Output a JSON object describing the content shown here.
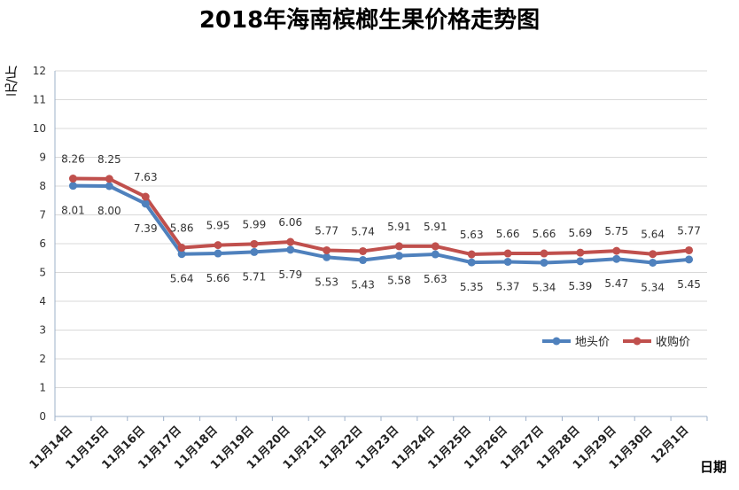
{
  "chart_data": {
    "type": "line",
    "title": "2018年海南槟榔生果价格走势图",
    "xlabel": "日期",
    "ylabel": "元/斤",
    "ylim": [
      0,
      12
    ],
    "yticks": [
      "0",
      "1",
      "2",
      "3",
      "4",
      "5",
      "6",
      "7",
      "8",
      "9",
      "10",
      "11",
      "12"
    ],
    "grid": true,
    "legend_position": "right",
    "categories": [
      "11月14日",
      "11月15日",
      "11月16日",
      "11月17日",
      "11月18日",
      "11月19日",
      "11月20日",
      "11月21日",
      "11月22日",
      "11月23日",
      "11月24日",
      "11月25日",
      "11月26日",
      "11月27日",
      "11月28日",
      "11月29日",
      "11月30日",
      "12月1日"
    ],
    "series": [
      {
        "name": "地头价",
        "color": "#4f81bd",
        "values": [
          8.01,
          8.0,
          7.39,
          5.64,
          5.66,
          5.71,
          5.79,
          5.53,
          5.43,
          5.58,
          5.63,
          5.35,
          5.37,
          5.34,
          5.39,
          5.47,
          5.34,
          5.45
        ],
        "labels": [
          "8.01",
          "8.00",
          "7.39",
          "5.64",
          "5.66",
          "5.71",
          "5.79",
          "5.53",
          "5.43",
          "5.58",
          "5.63",
          "5.35",
          "5.37",
          "5.34",
          "5.39",
          "5.47",
          "5.34",
          "5.45"
        ],
        "label_position": "below"
      },
      {
        "name": "收购价",
        "color": "#c0504d",
        "values": [
          8.26,
          8.25,
          7.63,
          5.86,
          5.95,
          5.99,
          6.06,
          5.77,
          5.74,
          5.91,
          5.91,
          5.63,
          5.66,
          5.66,
          5.69,
          5.75,
          5.64,
          5.77
        ],
        "labels": [
          "8.26",
          "8.25",
          "7.63",
          "5.86",
          "5.95",
          "5.99",
          "6.06",
          "5.77",
          "5.74",
          "5.91",
          "5.91",
          "5.63",
          "5.66",
          "5.66",
          "5.69",
          "5.75",
          "5.64",
          "5.77"
        ],
        "label_position": "above"
      }
    ]
  }
}
